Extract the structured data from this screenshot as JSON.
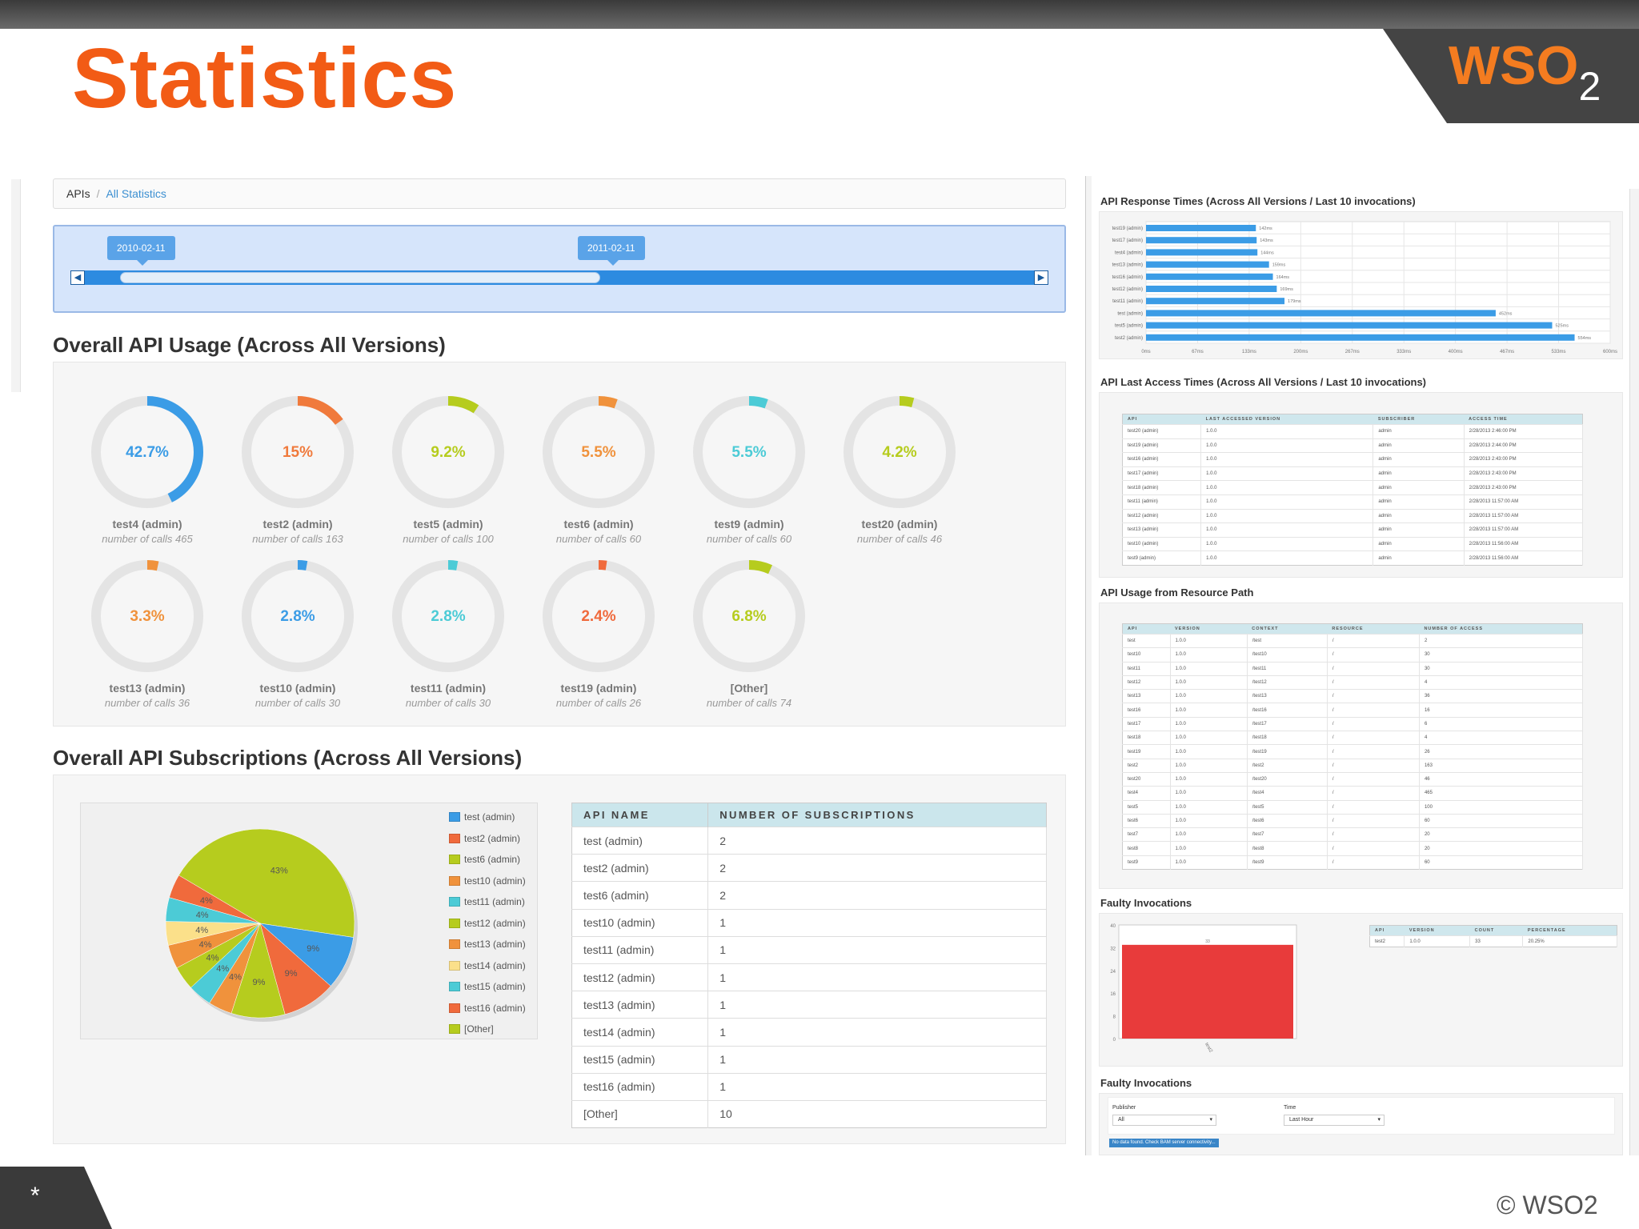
{
  "slide": {
    "title": "Statistics",
    "logo_text": "WSO",
    "logo_sub": "2",
    "copyright": "© WSO2",
    "footer_mark": "*"
  },
  "breadcrumb": {
    "root": "APIs",
    "sep": "/",
    "current": "All Statistics"
  },
  "date_slider": {
    "start": "2010-02-11",
    "end": "2011-02-11",
    "prev_icon": "◀",
    "next_icon": "▶"
  },
  "usage": {
    "title": "Overall API Usage (Across All Versions)",
    "items": [
      {
        "pct": "42.7%",
        "value": 42.7,
        "name": "test4 (admin)",
        "calls": "number of calls 465",
        "color": "#3b9ce6"
      },
      {
        "pct": "15%",
        "value": 15,
        "name": "test2 (admin)",
        "calls": "number of calls 163",
        "color": "#f07a3c"
      },
      {
        "pct": "9.2%",
        "value": 9.2,
        "name": "test5 (admin)",
        "calls": "number of calls 100",
        "color": "#b6cc1e"
      },
      {
        "pct": "5.5%",
        "value": 5.5,
        "name": "test6 (admin)",
        "calls": "number of calls 60",
        "color": "#f0923c"
      },
      {
        "pct": "5.5%",
        "value": 5.5,
        "name": "test9 (admin)",
        "calls": "number of calls 60",
        "color": "#4ccbd6"
      },
      {
        "pct": "4.2%",
        "value": 4.2,
        "name": "test20 (admin)",
        "calls": "number of calls 46",
        "color": "#b6cc1e"
      },
      {
        "pct": "3.3%",
        "value": 3.3,
        "name": "test13 (admin)",
        "calls": "number of calls 36",
        "color": "#f0923c"
      },
      {
        "pct": "2.8%",
        "value": 2.8,
        "name": "test10 (admin)",
        "calls": "number of calls 30",
        "color": "#3b9ce6"
      },
      {
        "pct": "2.8%",
        "value": 2.8,
        "name": "test11 (admin)",
        "calls": "number of calls 30",
        "color": "#4ccbd6"
      },
      {
        "pct": "2.4%",
        "value": 2.4,
        "name": "test19 (admin)",
        "calls": "number of calls 26",
        "color": "#f06a3c"
      },
      {
        "pct": "6.8%",
        "value": 6.8,
        "name": "[Other]",
        "calls": "number of calls 74",
        "color": "#b6cc1e"
      }
    ]
  },
  "subscriptions": {
    "title": "Overall API Subscriptions (Across All Versions)",
    "columns": [
      "API NAME",
      "NUMBER OF SUBSCRIPTIONS"
    ],
    "rows": [
      [
        "test (admin)",
        "2"
      ],
      [
        "test2 (admin)",
        "2"
      ],
      [
        "test6 (admin)",
        "2"
      ],
      [
        "test10 (admin)",
        "1"
      ],
      [
        "test11 (admin)",
        "1"
      ],
      [
        "test12 (admin)",
        "1"
      ],
      [
        "test13 (admin)",
        "1"
      ],
      [
        "test14 (admin)",
        "1"
      ],
      [
        "test15 (admin)",
        "1"
      ],
      [
        "test16 (admin)",
        "1"
      ],
      [
        "[Other]",
        "10"
      ]
    ],
    "legend": [
      {
        "label": "test (admin)",
        "color": "#3b9ce6"
      },
      {
        "label": "test2 (admin)",
        "color": "#f06a3c"
      },
      {
        "label": "test6 (admin)",
        "color": "#b6cc1e"
      },
      {
        "label": "test10 (admin)",
        "color": "#f0923c"
      },
      {
        "label": "test11 (admin)",
        "color": "#4ccbd6"
      },
      {
        "label": "test12 (admin)",
        "color": "#b6cc1e"
      },
      {
        "label": "test13 (admin)",
        "color": "#f0923c"
      },
      {
        "label": "test14 (admin)",
        "color": "#fbe08a"
      },
      {
        "label": "test15 (admin)",
        "color": "#4ccbd6"
      },
      {
        "label": "test16 (admin)",
        "color": "#f06a3c"
      },
      {
        "label": "[Other]",
        "color": "#b6cc1e"
      }
    ],
    "pie_slices": [
      {
        "value": 43,
        "label": "43%",
        "color": "#b6cc1e"
      },
      {
        "value": 9,
        "label": "9%",
        "color": "#3b9ce6"
      },
      {
        "value": 9,
        "label": "9%",
        "color": "#f06a3c"
      },
      {
        "value": 9,
        "label": "9%",
        "color": "#b6cc1e"
      },
      {
        "value": 4,
        "label": "4%",
        "color": "#f0923c"
      },
      {
        "value": 4,
        "label": "4%",
        "color": "#4ccbd6"
      },
      {
        "value": 4,
        "label": "4%",
        "color": "#b6cc1e"
      },
      {
        "value": 4,
        "label": "4%",
        "color": "#f0923c"
      },
      {
        "value": 4,
        "label": "4%",
        "color": "#fbe08a"
      },
      {
        "value": 4,
        "label": "4%",
        "color": "#4ccbd6"
      },
      {
        "value": 4,
        "label": "4%",
        "color": "#f06a3c"
      }
    ]
  },
  "response_times": {
    "title": "API Response Times (Across All Versions / Last 10 invocations)",
    "bars": [
      {
        "api": "test19 (admin)",
        "ms": 142,
        "label": "142ms"
      },
      {
        "api": "test17 (admin)",
        "ms": 143,
        "label": "143ms"
      },
      {
        "api": "test4 (admin)",
        "ms": 144,
        "label": "144ms"
      },
      {
        "api": "test13 (admin)",
        "ms": 159,
        "label": "159ms"
      },
      {
        "api": "test16 (admin)",
        "ms": 164,
        "label": "164ms"
      },
      {
        "api": "test12 (admin)",
        "ms": 169,
        "label": "169ms"
      },
      {
        "api": "test11 (admin)",
        "ms": 179,
        "label": "179ms"
      },
      {
        "api": "test (admin)",
        "ms": 452,
        "label": "452ms"
      },
      {
        "api": "test5 (admin)",
        "ms": 525,
        "label": "525ms"
      },
      {
        "api": "test2 (admin)",
        "ms": 554,
        "label": "554ms"
      }
    ],
    "ticks": [
      "0ms",
      "67ms",
      "133ms",
      "200ms",
      "267ms",
      "333ms",
      "400ms",
      "467ms",
      "533ms",
      "600ms"
    ],
    "xmax": 600
  },
  "last_access": {
    "title": "API Last Access Times (Across All Versions / Last 10 invocations)",
    "columns": [
      "API",
      "LAST ACCESSED VERSION",
      "SUBSCRIBER",
      "ACCESS TIME"
    ],
    "rows": [
      [
        "test20 (admin)",
        "1.0.0",
        "admin",
        "2/28/2013 2:46:00 PM"
      ],
      [
        "test19 (admin)",
        "1.0.0",
        "admin",
        "2/28/2013 2:44:00 PM"
      ],
      [
        "test16 (admin)",
        "1.0.0",
        "admin",
        "2/28/2013 2:43:00 PM"
      ],
      [
        "test17 (admin)",
        "1.0.0",
        "admin",
        "2/28/2013 2:43:00 PM"
      ],
      [
        "test18 (admin)",
        "1.0.0",
        "admin",
        "2/28/2013 2:43:00 PM"
      ],
      [
        "test11 (admin)",
        "1.0.0",
        "admin",
        "2/28/2013 11:57:00 AM"
      ],
      [
        "test12 (admin)",
        "1.0.0",
        "admin",
        "2/28/2013 11:57:00 AM"
      ],
      [
        "test13 (admin)",
        "1.0.0",
        "admin",
        "2/28/2013 11:57:00 AM"
      ],
      [
        "test10 (admin)",
        "1.0.0",
        "admin",
        "2/28/2013 11:56:00 AM"
      ],
      [
        "test9 (admin)",
        "1.0.0",
        "admin",
        "2/28/2013 11:56:00 AM"
      ]
    ]
  },
  "resource_path": {
    "title": "API Usage from Resource Path",
    "columns": [
      "API",
      "VERSION",
      "CONTEXT",
      "RESOURCE",
      "NUMBER OF ACCESS"
    ],
    "rows": [
      [
        "test",
        "1.0.0",
        "/test",
        "/",
        "2"
      ],
      [
        "test10",
        "1.0.0",
        "/test10",
        "/",
        "30"
      ],
      [
        "test11",
        "1.0.0",
        "/test11",
        "/",
        "30"
      ],
      [
        "test12",
        "1.0.0",
        "/test12",
        "/",
        "4"
      ],
      [
        "test13",
        "1.0.0",
        "/test13",
        "/",
        "36"
      ],
      [
        "test16",
        "1.0.0",
        "/test16",
        "/",
        "16"
      ],
      [
        "test17",
        "1.0.0",
        "/test17",
        "/",
        "6"
      ],
      [
        "test18",
        "1.0.0",
        "/test18",
        "/",
        "4"
      ],
      [
        "test19",
        "1.0.0",
        "/test19",
        "/",
        "26"
      ],
      [
        "test2",
        "1.0.0",
        "/test2",
        "/",
        "163"
      ],
      [
        "test20",
        "1.0.0",
        "/test20",
        "/",
        "46"
      ],
      [
        "test4",
        "1.0.0",
        "/test4",
        "/",
        "465"
      ],
      [
        "test5",
        "1.0.0",
        "/test5",
        "/",
        "100"
      ],
      [
        "test6",
        "1.0.0",
        "/test6",
        "/",
        "60"
      ],
      [
        "test7",
        "1.0.0",
        "/test7",
        "/",
        "20"
      ],
      [
        "test8",
        "1.0.0",
        "/test8",
        "/",
        "20"
      ],
      [
        "test9",
        "1.0.0",
        "/test9",
        "/",
        "60"
      ]
    ]
  },
  "faulty": {
    "title": "Faulty Invocations",
    "columns": [
      "API",
      "VERSION",
      "COUNT",
      "PERCENTAGE"
    ],
    "rows": [
      [
        "test2",
        "1.0.0",
        "33",
        "20.25%"
      ]
    ],
    "yticks": [
      "40",
      "32",
      "24",
      "16",
      "8",
      "0"
    ],
    "bar_value": 33,
    "bar_value_label": "33",
    "ymax": 40,
    "bar_category": "test2"
  },
  "faulty2": {
    "title": "Faulty Invocations",
    "publisher_label": "Publisher",
    "publisher_value": "All",
    "time_label": "Time",
    "time_value": "Last Hour",
    "alert": "No data found. Check BAM server connectivity..."
  },
  "chart_data": [
    {
      "type": "pie",
      "title": "Overall API Subscriptions (Across All Versions)",
      "categories": [
        "test (admin)",
        "test2 (admin)",
        "test6 (admin)",
        "test10 (admin)",
        "test11 (admin)",
        "test12 (admin)",
        "test13 (admin)",
        "test14 (admin)",
        "test15 (admin)",
        "test16 (admin)",
        "[Other]"
      ],
      "values": [
        2,
        2,
        2,
        1,
        1,
        1,
        1,
        1,
        1,
        1,
        10
      ]
    },
    {
      "type": "bar",
      "title": "API Response Times (Across All Versions / Last 10 invocations)",
      "categories": [
        "test19 (admin)",
        "test17 (admin)",
        "test4 (admin)",
        "test13 (admin)",
        "test16 (admin)",
        "test12 (admin)",
        "test11 (admin)",
        "test (admin)",
        "test5 (admin)",
        "test2 (admin)"
      ],
      "values": [
        142,
        143,
        144,
        159,
        164,
        169,
        179,
        452,
        525,
        554
      ],
      "xlim": [
        0,
        600
      ]
    },
    {
      "type": "bar",
      "title": "Faulty Invocations",
      "categories": [
        "test2"
      ],
      "values": [
        33
      ],
      "ylim": [
        0,
        40
      ]
    }
  ]
}
